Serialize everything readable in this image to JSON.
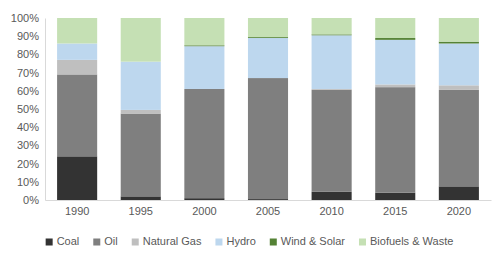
{
  "chart_data": {
    "type": "bar",
    "stacked": true,
    "grid": false,
    "legend": "bottom",
    "categories": [
      "1990",
      "1995",
      "2000",
      "2005",
      "2010",
      "2015",
      "2020"
    ],
    "series": [
      {
        "name": "Coal",
        "color": "#333333",
        "values": [
          24,
          2,
          1,
          0.5,
          4.5,
          4,
          7.5
        ]
      },
      {
        "name": "Oil",
        "color": "#7f7f7f",
        "values": [
          45,
          45.5,
          60,
          66.5,
          56,
          58,
          53
        ]
      },
      {
        "name": "Natural Gas",
        "color": "#bfbfbf",
        "values": [
          8,
          2,
          0,
          0,
          0.5,
          1.5,
          2.5
        ]
      },
      {
        "name": "Hydro",
        "color": "#bdd7ee",
        "values": [
          9,
          26.5,
          23.5,
          22,
          29.5,
          24.5,
          23
        ]
      },
      {
        "name": "Wind & Solar",
        "color": "#548235",
        "values": [
          0,
          0,
          0.5,
          0.5,
          0.5,
          1,
          1
        ]
      },
      {
        "name": "Biofuels & Waste",
        "color": "#c5e0b4",
        "values": [
          14,
          24,
          15,
          10.5,
          9,
          11,
          13
        ]
      }
    ],
    "ylim": [
      0,
      100
    ],
    "yticks": [
      {
        "value": 0,
        "label": "0%"
      },
      {
        "value": 10,
        "label": "10%"
      },
      {
        "value": 20,
        "label": "20%"
      },
      {
        "value": 30,
        "label": "30%"
      },
      {
        "value": 40,
        "label": "40%"
      },
      {
        "value": 50,
        "label": "50%"
      },
      {
        "value": 60,
        "label": "60%"
      },
      {
        "value": 70,
        "label": "70%"
      },
      {
        "value": 80,
        "label": "80%"
      },
      {
        "value": 90,
        "label": "90%"
      },
      {
        "value": 100,
        "label": "100%"
      }
    ]
  }
}
